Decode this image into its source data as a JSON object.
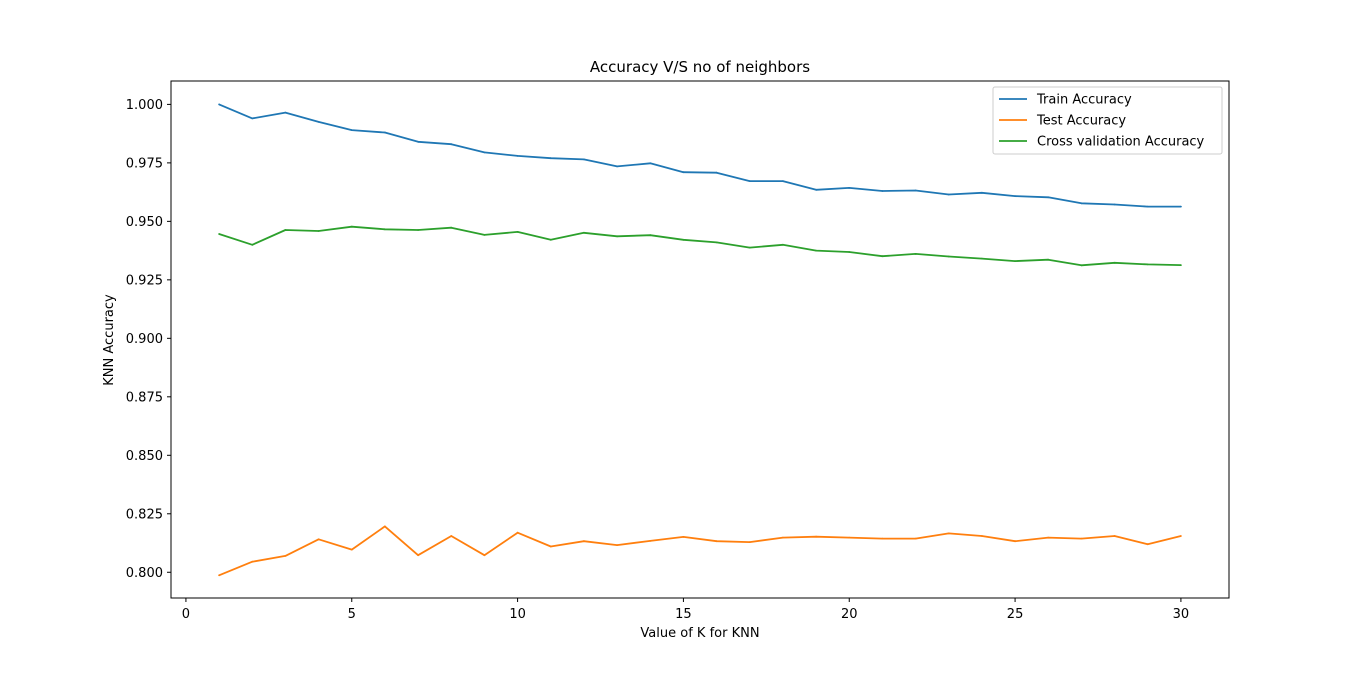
{
  "chart_data": {
    "type": "line",
    "title": "Accuracy V/S no of neighbors",
    "xlabel": "Value of K for KNN",
    "ylabel": "KNN Accuracy",
    "xlim": [
      -0.45,
      31.45
    ],
    "ylim": [
      0.789,
      1.01
    ],
    "xticks": [
      0,
      5,
      10,
      15,
      20,
      25,
      30
    ],
    "xtick_labels": [
      "0",
      "5",
      "10",
      "15",
      "20",
      "25",
      "30"
    ],
    "yticks": [
      0.8,
      0.825,
      0.85,
      0.875,
      0.9,
      0.925,
      0.95,
      0.975,
      1.0
    ],
    "ytick_labels": [
      "0.800",
      "0.825",
      "0.850",
      "0.875",
      "0.900",
      "0.925",
      "0.950",
      "0.975",
      "1.000"
    ],
    "grid": false,
    "legend_position": "top-right",
    "x": [
      1,
      2,
      3,
      4,
      5,
      6,
      7,
      8,
      9,
      10,
      11,
      12,
      13,
      14,
      15,
      16,
      17,
      18,
      19,
      20,
      21,
      22,
      23,
      24,
      25,
      26,
      27,
      28,
      29,
      30
    ],
    "series": [
      {
        "name": "Train Accuracy",
        "color": "#1f77b4",
        "values": [
          1.0,
          0.994,
          0.9965,
          0.9925,
          0.989,
          0.988,
          0.984,
          0.983,
          0.9795,
          0.978,
          0.977,
          0.9765,
          0.9735,
          0.9748,
          0.971,
          0.9708,
          0.9672,
          0.9672,
          0.9635,
          0.9643,
          0.963,
          0.9632,
          0.9615,
          0.9622,
          0.9608,
          0.9603,
          0.9577,
          0.9572,
          0.9563,
          0.9563
        ]
      },
      {
        "name": "Test Accuracy",
        "color": "#ff7f0e",
        "values": [
          0.7987,
          0.8045,
          0.807,
          0.8141,
          0.8097,
          0.8196,
          0.8073,
          0.8155,
          0.8073,
          0.8169,
          0.811,
          0.8133,
          0.8116,
          0.8134,
          0.8151,
          0.8133,
          0.8129,
          0.8148,
          0.8152,
          0.8148,
          0.8144,
          0.8144,
          0.8166,
          0.8155,
          0.8133,
          0.8148,
          0.8144,
          0.8155,
          0.812,
          0.8155
        ]
      },
      {
        "name": "Cross validation Accuracy",
        "color": "#2ca02c",
        "values": [
          0.9446,
          0.94,
          0.9463,
          0.9459,
          0.9477,
          0.9466,
          0.9463,
          0.9473,
          0.9442,
          0.9455,
          0.9421,
          0.9451,
          0.9436,
          0.9441,
          0.9421,
          0.941,
          0.9388,
          0.94,
          0.9375,
          0.9369,
          0.9351,
          0.9361,
          0.935,
          0.9341,
          0.933,
          0.9336,
          0.9312,
          0.9323,
          0.9316,
          0.9313
        ]
      }
    ]
  }
}
